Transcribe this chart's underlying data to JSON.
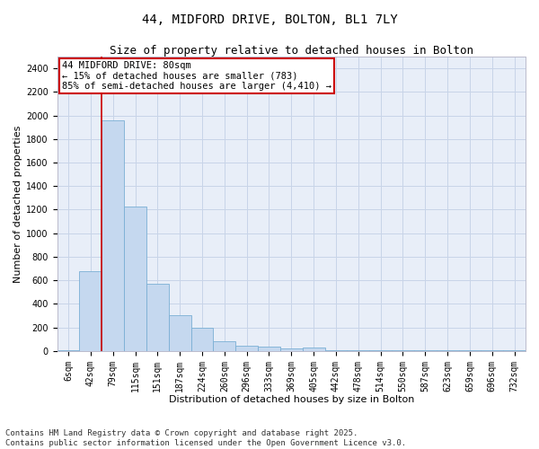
{
  "title_line1": "44, MIDFORD DRIVE, BOLTON, BL1 7LY",
  "title_line2": "Size of property relative to detached houses in Bolton",
  "xlabel": "Distribution of detached houses by size in Bolton",
  "ylabel": "Number of detached properties",
  "categories": [
    "6sqm",
    "42sqm",
    "79sqm",
    "115sqm",
    "151sqm",
    "187sqm",
    "224sqm",
    "260sqm",
    "296sqm",
    "333sqm",
    "369sqm",
    "405sqm",
    "442sqm",
    "478sqm",
    "514sqm",
    "550sqm",
    "587sqm",
    "623sqm",
    "659sqm",
    "696sqm",
    "732sqm"
  ],
  "values": [
    5,
    680,
    1960,
    1230,
    570,
    305,
    195,
    80,
    42,
    35,
    25,
    28,
    5,
    3,
    3,
    3,
    8,
    3,
    3,
    3,
    3
  ],
  "bar_color": "#c5d8ef",
  "bar_edge_color": "#7aafd4",
  "grid_color": "#c8d4e8",
  "background_color": "#e8eef8",
  "vline_x": 2.0,
  "vline_color": "#cc0000",
  "annotation_text": "44 MIDFORD DRIVE: 80sqm\n← 15% of detached houses are smaller (783)\n85% of semi-detached houses are larger (4,410) →",
  "annotation_box_color": "#cc0000",
  "ylim": [
    0,
    2500
  ],
  "yticks": [
    0,
    200,
    400,
    600,
    800,
    1000,
    1200,
    1400,
    1600,
    1800,
    2000,
    2200,
    2400
  ],
  "footer_text": "Contains HM Land Registry data © Crown copyright and database right 2025.\nContains public sector information licensed under the Open Government Licence v3.0.",
  "title_fontsize": 10,
  "subtitle_fontsize": 9,
  "axis_label_fontsize": 8,
  "tick_fontsize": 7,
  "annotation_fontsize": 7.5,
  "footer_fontsize": 6.5
}
